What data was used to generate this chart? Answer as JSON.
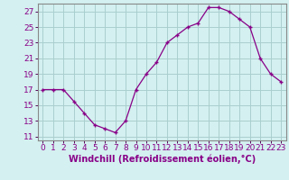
{
  "x": [
    0,
    1,
    2,
    3,
    4,
    5,
    6,
    7,
    8,
    9,
    10,
    11,
    12,
    13,
    14,
    15,
    16,
    17,
    18,
    19,
    20,
    21,
    22,
    23
  ],
  "y": [
    17.0,
    17.0,
    17.0,
    15.5,
    14.0,
    12.5,
    12.0,
    11.5,
    13.0,
    17.0,
    19.0,
    20.5,
    23.0,
    24.0,
    25.0,
    25.5,
    27.5,
    27.5,
    27.0,
    26.0,
    25.0,
    21.0,
    19.0,
    18.0
  ],
  "line_color": "#880088",
  "marker": "+",
  "bg_color": "#d4f0f0",
  "grid_color": "#aacece",
  "xlabel": "Windchill (Refroidissement éolien,°C)",
  "xlabel_fontsize": 7,
  "tick_fontsize": 6.5,
  "ylim": [
    10.5,
    28
  ],
  "xlim": [
    -0.5,
    23.5
  ],
  "yticks": [
    11,
    13,
    15,
    17,
    19,
    21,
    23,
    25,
    27
  ],
  "xticks": [
    0,
    1,
    2,
    3,
    4,
    5,
    6,
    7,
    8,
    9,
    10,
    11,
    12,
    13,
    14,
    15,
    16,
    17,
    18,
    19,
    20,
    21,
    22,
    23
  ]
}
